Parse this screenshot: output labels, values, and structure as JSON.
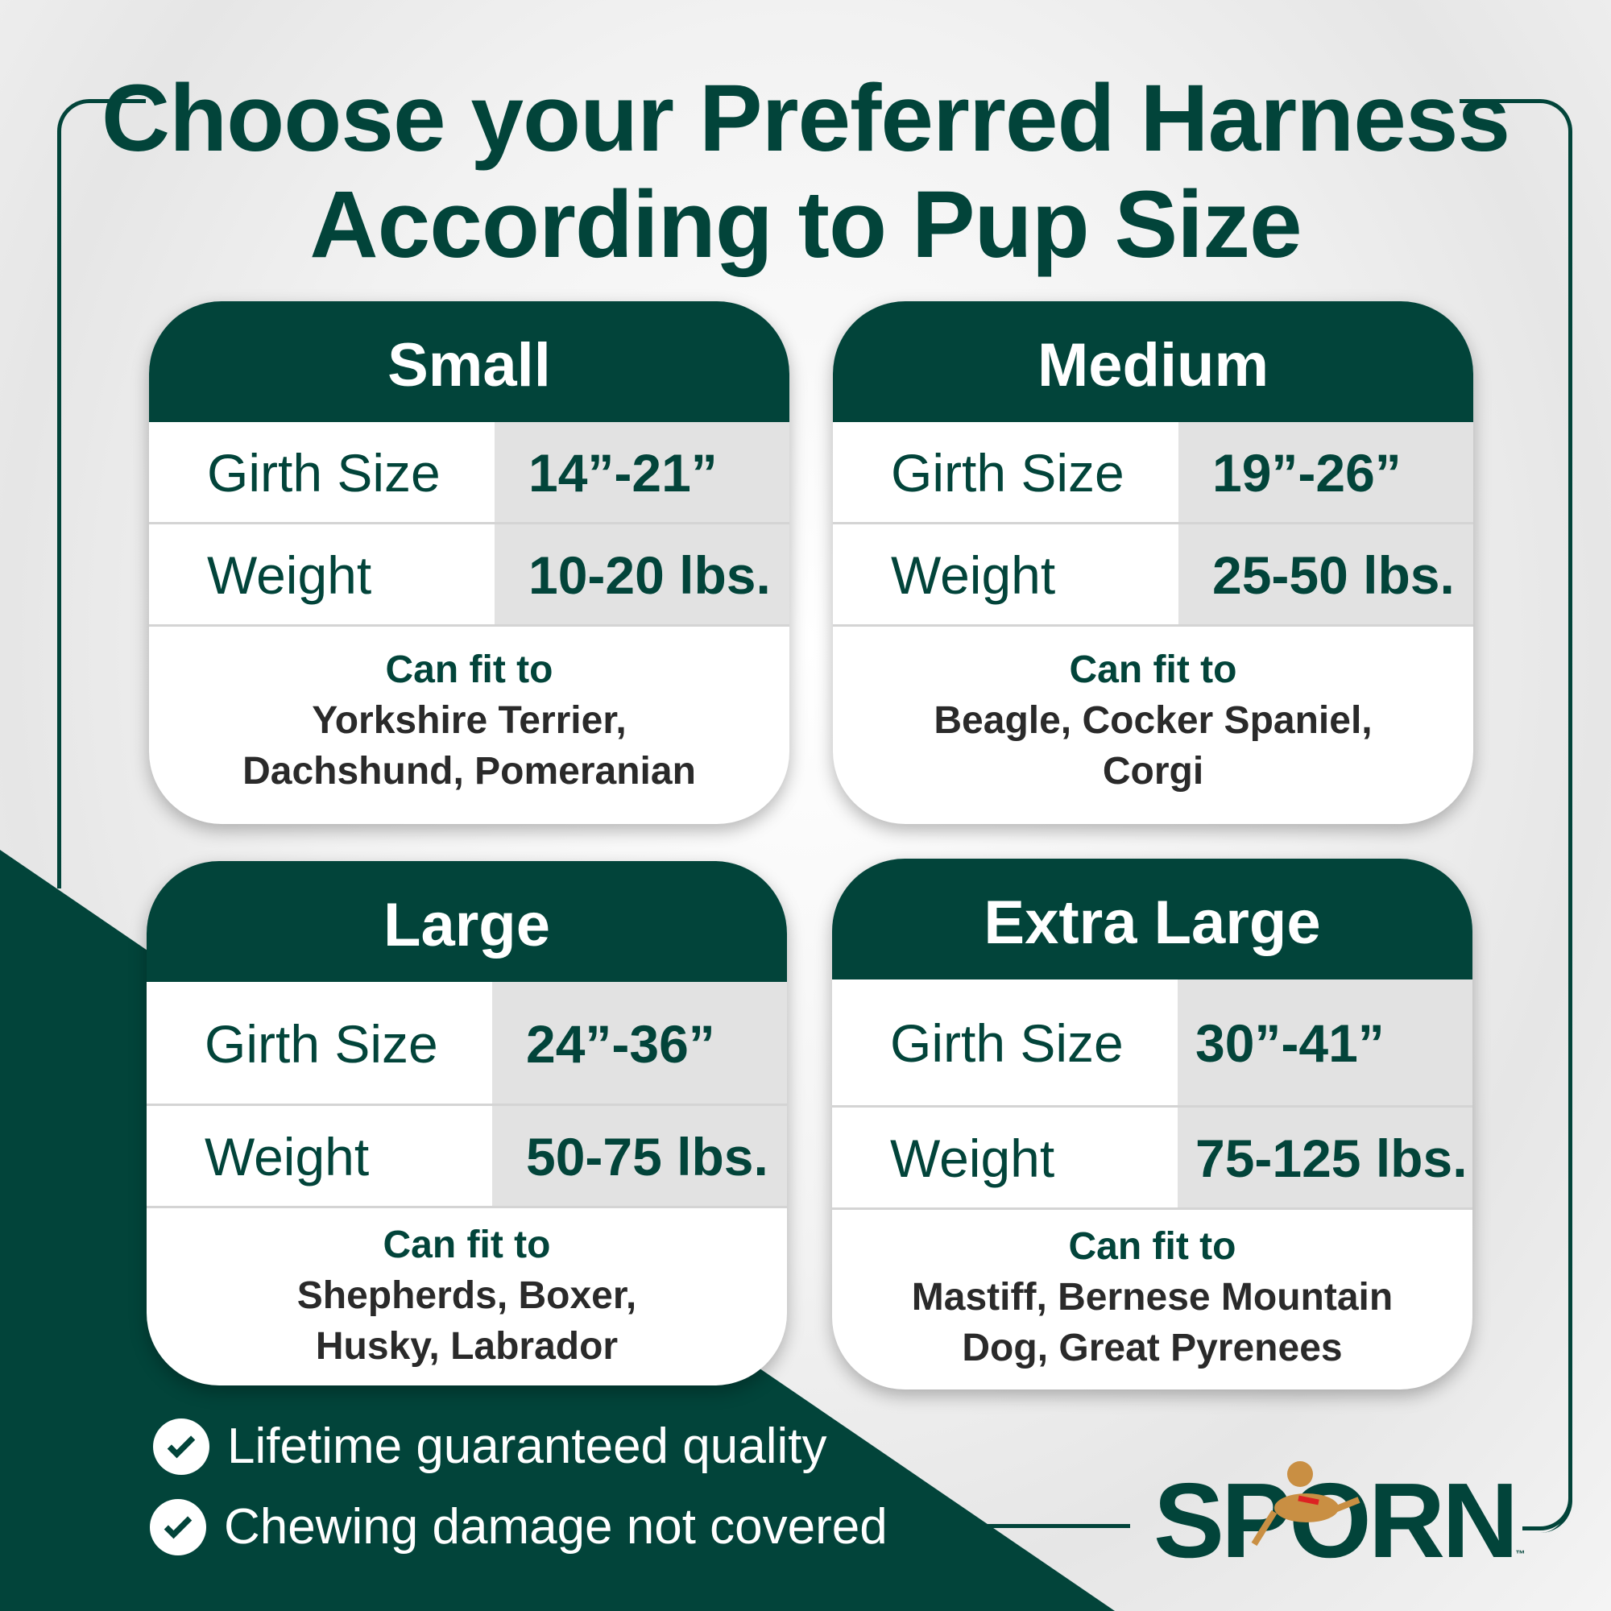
{
  "title": {
    "line1": "Choose your Preferred Harness",
    "line2": "According to Pup Size"
  },
  "cards": [
    {
      "name": "Small",
      "girth_label": "Girth Size",
      "girth": "14”-21”",
      "weight_label": "Weight",
      "weight": "10-20 lbs.",
      "fit_label": "Can fit to",
      "fit_line1": "Yorkshire Terrier,",
      "fit_line2": "Dachshund, Pomeranian"
    },
    {
      "name": "Medium",
      "girth_label": "Girth Size",
      "girth": "19”-26”",
      "weight_label": "Weight",
      "weight": "25-50 lbs.",
      "fit_label": "Can fit to",
      "fit_line1": "Beagle, Cocker Spaniel,",
      "fit_line2": "Corgi"
    },
    {
      "name": "Large",
      "girth_label": "Girth Size",
      "girth": "24”-36”",
      "weight_label": "Weight",
      "weight": "50-75 lbs.",
      "fit_label": "Can fit to",
      "fit_line1": "Shepherds, Boxer,",
      "fit_line2": "Husky, Labrador"
    },
    {
      "name": "Extra Large",
      "girth_label": "Girth Size",
      "girth": "30”-41”",
      "weight_label": "Weight",
      "weight": "75-125 lbs.",
      "fit_label": "Can fit to",
      "fit_line1": "Mastiff, Bernese Mountain",
      "fit_line2": "Dog, Great Pyrenees"
    }
  ],
  "features": [
    "Lifetime guaranteed quality",
    "Chewing damage not covered"
  ],
  "logo": {
    "text_before": "SP",
    "text_o": "O",
    "text_after": "RN",
    "tm": "™"
  },
  "colors": {
    "brand_green": "#02443a",
    "value_bg": "#e2e2e2"
  }
}
